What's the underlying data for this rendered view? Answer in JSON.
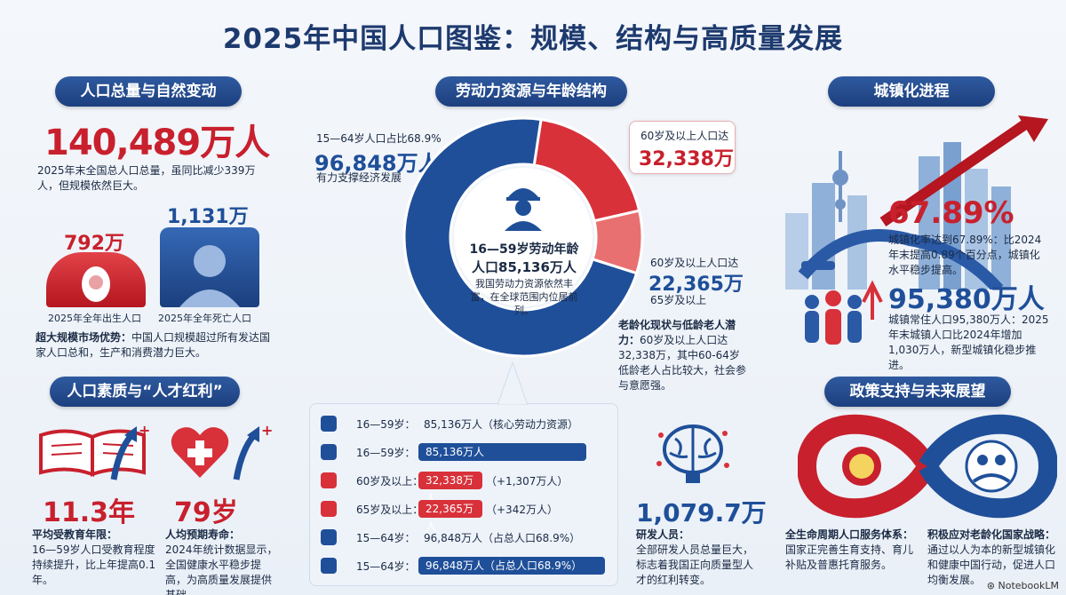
{
  "title": "2025年中国人口图鉴：规模、结构与高质量发展",
  "sections": {
    "population": "人口总量与自然变动",
    "labor": "劳动力资源与年龄结构",
    "urban": "城镇化进程",
    "quality": "人口素质与“人才红利”",
    "policy": "政策支持与未来展望"
  },
  "population": {
    "total": "140,489万人",
    "total_desc": "2025年末全国总人口总量，虽同比减少339万人，但规模依然巨大。",
    "births_value": "792万",
    "births_label": "2025年全年出生人口",
    "deaths_value": "1,131万",
    "deaths_label": "2025年全年死亡人口",
    "market_title": "超大规模市场优势：",
    "market_desc": "中国人口规模超过所有发达国家人口总和，生产和消费潜力巨大。"
  },
  "labor": {
    "left_top": "15—64岁人口占比68.9%",
    "left_value": "96,848万人",
    "left_desc": "有力支撑经济发展",
    "center_title": "16—59岁劳动年龄",
    "center_value": "人口85,136万人",
    "center_desc": "我国劳动力资源依然丰富，在全球范围内位居前列。",
    "r1_label": "60岁及以上人口达",
    "r1_value": "32,338万",
    "r2_label": "60岁及以上人口达",
    "r2_value": "22,365万",
    "r2_sub": "65岁及以上",
    "aging_title": "老龄化现状与低龄老人潜力：",
    "aging_desc": "60岁及以上人口达32,338万，其中60-64岁低龄老人占比较大，社会参与意愿强。",
    "donut": [
      {
        "name": "16—59岁",
        "value": 85136
      },
      {
        "name": "60—64岁",
        "value": 9973
      },
      {
        "name": "65岁及以上",
        "value": 22365
      }
    ],
    "colors": {
      "blue": "#1f4f99",
      "red": "#d8313a",
      "lightred": "#e97070",
      "lightblue": "#3f7fd0"
    }
  },
  "table": [
    {
      "label": "16—59岁：",
      "value": "85,136万人",
      "extra": "（核心劳动力资源）",
      "style": "plain",
      "icon": "group-icon"
    },
    {
      "label": "16—59岁：",
      "value": "85,136万人",
      "extra": "",
      "style": "bluebar",
      "fill": 0.9,
      "icon": "worker-icon"
    },
    {
      "label": "60岁及以上：",
      "value": "32,338万人",
      "extra": "（+1,307万人）",
      "style": "redbar",
      "fill": 0.3,
      "icon": "elder-icon"
    },
    {
      "label": "65岁及以上：",
      "value": "22,365万人",
      "extra": "（+342万人）",
      "style": "redbar",
      "fill": 0.3,
      "icon": "elder-icon"
    },
    {
      "label": "15—64岁：",
      "value": "96,848万人",
      "extra": "（占总人口68.9%）",
      "style": "plain",
      "icon": "family-icon"
    },
    {
      "label": "15—64岁：",
      "value": "96,848万人",
      "extra": "（占总人口68.9%）",
      "style": "bluebar",
      "fill": 1.0,
      "icon": "group-icon"
    }
  ],
  "research": {
    "value": "1,079.7万",
    "title": "研发人员：",
    "desc": "全部研发人员总量巨大，标志着我国正向质量型人才的红利转变。"
  },
  "urban": {
    "rate": "67.89%",
    "rate_desc": "城镇化率达到67.89%：比2024年末提高0.89个百分点，城镇化水平稳步提高。",
    "people": "95,380万人",
    "people_desc": "城镇常住人口95,380万人：2025年末城镇人口比2024年增加1,030万人，新型城镇化稳步推进。"
  },
  "quality": {
    "edu_value": "11.3年",
    "edu_title": "平均受教育年限：",
    "edu_desc": "16—59岁人口受教育程度持续提升，比上年提高0.1年。",
    "life_value": "79岁",
    "life_title": "人均预期寿命：",
    "life_desc": "2024年统计数据显示，全国健康水平稳步提高，为高质量发展提供基础。"
  },
  "policy": {
    "left_title": "全生命周期人口服务体系：",
    "left_desc": "国家正完善生育支持、育儿补贴及普惠托育服务。",
    "right_title": "积极应对老龄化国家战略：",
    "right_desc": "通过以人为本的新型城镇化和健康中国行动，促进人口均衡发展。"
  },
  "footer": "NotebookLM"
}
